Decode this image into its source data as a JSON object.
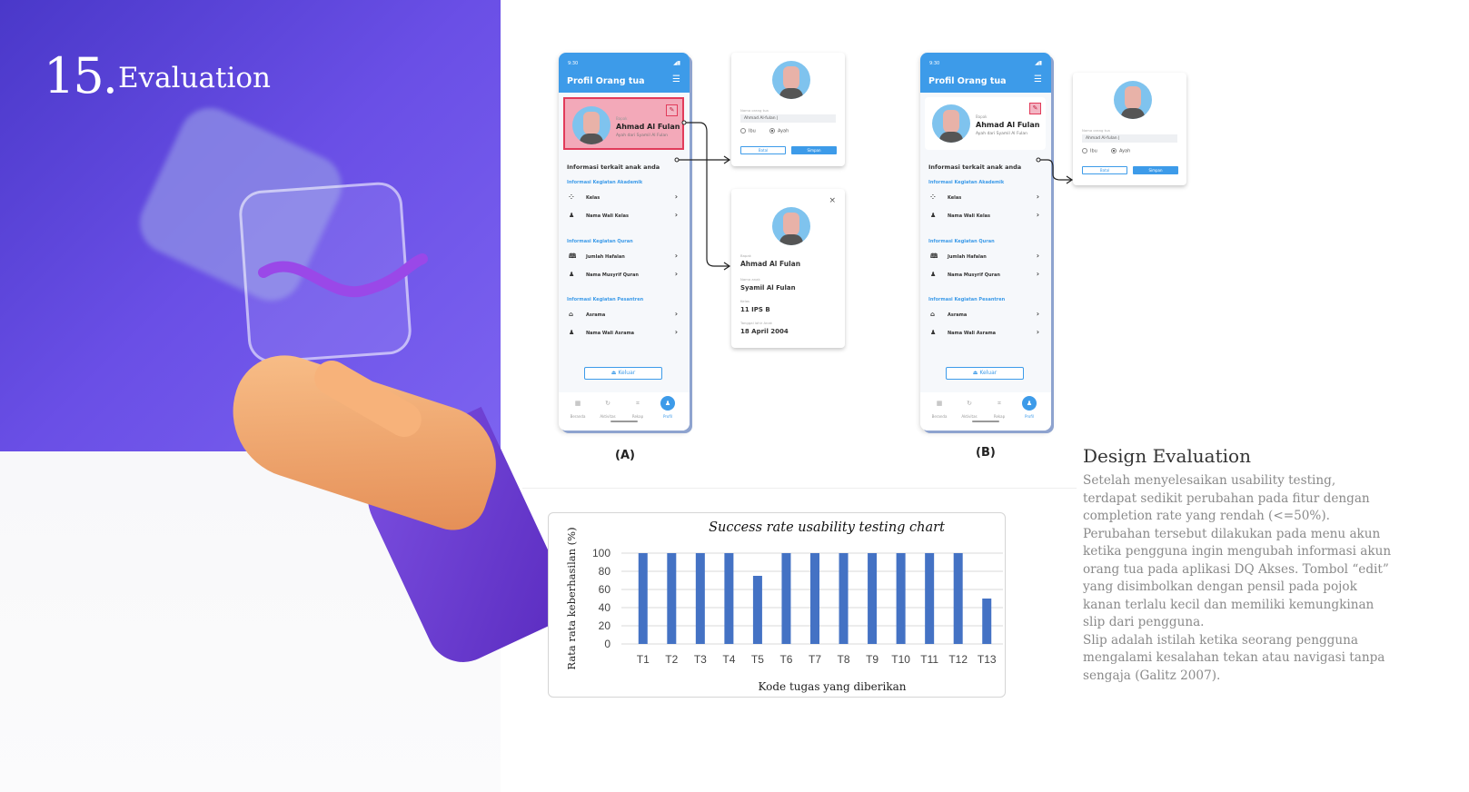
{
  "slide": {
    "number": "15.",
    "title": "Evaluation"
  },
  "phone": {
    "time": "9:30",
    "title": "Profil Orang tua",
    "parent_label": "Bapak",
    "parent_name": "Ahmad Al Fulan",
    "parent_sub": "Ayah dari Syamil Al Fulan",
    "info_heading": "Informasi terkait anak anda",
    "sections": [
      {
        "title": "Informasi Kegiatan Akademik",
        "items": [
          "Kelas",
          "Nama Wali Kelas"
        ]
      },
      {
        "title": "Informasi Kegiatan Quran",
        "items": [
          "Jumlah Hafalan",
          "Nama Musyrif Quran"
        ]
      },
      {
        "title": "Informasi Kegiatan Pesantren",
        "items": [
          "Asrama",
          "Nama Wali Asrama"
        ]
      }
    ],
    "logout": "Keluar",
    "nav": [
      "Beranda",
      "Aktivitas",
      "Rekap",
      "Profil"
    ],
    "active_nav": "Profil"
  },
  "edit_popup": {
    "field_label": "Nama orang tua",
    "field_value": "Ahmad Al-fulan |",
    "options": [
      "Ibu",
      "Ayah"
    ],
    "selected": "Ayah",
    "cancel": "Batal",
    "save": "Simpan"
  },
  "detail_popup": {
    "fields": [
      {
        "label": "Bapak",
        "value": "Ahmad Al Fulan"
      },
      {
        "label": "Nama anak",
        "value": "Syamil Al Fulan"
      },
      {
        "label": "Kelas",
        "value": "11 IPS B"
      },
      {
        "label": "Tanggal lahir Anak",
        "value": "18 April 2004"
      }
    ]
  },
  "captions": {
    "a": "(A)",
    "b": "(B)"
  },
  "chart_data": {
    "type": "bar",
    "title": "Success rate usability testing chart",
    "xlabel": "Kode tugas yang diberikan",
    "ylabel": "Rata rata keberhasilan (%)",
    "categories": [
      "T1",
      "T2",
      "T3",
      "T4",
      "T5",
      "T6",
      "T7",
      "T8",
      "T9",
      "T10",
      "T11",
      "T12",
      "T13"
    ],
    "values": [
      100,
      100,
      100,
      100,
      75,
      100,
      100,
      100,
      100,
      100,
      100,
      100,
      50
    ],
    "yticks": [
      0,
      20,
      40,
      60,
      80,
      100
    ],
    "ylim": [
      0,
      100
    ],
    "grid": true,
    "color": "#4472c4"
  },
  "evaluation": {
    "title": "Design Evaluation",
    "paragraph1": "Setelah menyelesaikan usability testing, terdapat sedikit perubahan pada fitur dengan completion rate yang rendah (<=50%). Perubahan tersebut dilakukan pada menu akun ketika pengguna ingin mengubah informasi akun orang tua pada aplikasi DQ Akses. Tombol “edit” yang disimbolkan dengan pensil pada pojok kanan terlalu kecil dan memiliki kemungkinan slip dari pengguna.",
    "paragraph2": "Slip adalah istilah ketika seorang pengguna mengalami kesalahan tekan atau navigasi tanpa sengaja (Galitz 2007)."
  }
}
